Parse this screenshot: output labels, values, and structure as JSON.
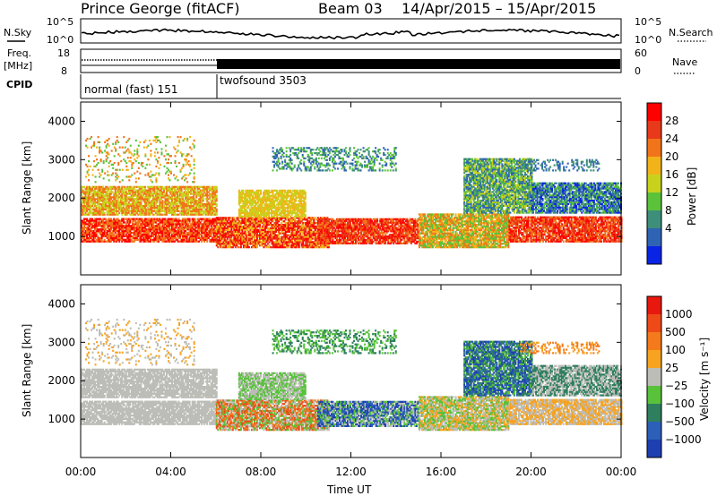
{
  "header": {
    "station": "Prince George (fitACF)",
    "beam": "Beam 03",
    "dates": "14/Apr/2015 – 15/Apr/2015"
  },
  "strip_labels": {
    "nsky": "N.Sky",
    "nsky_top": "10^5",
    "nsky_bottom": "10^0",
    "nsearch": "N.Search",
    "nsearch_top": "10^5",
    "nsearch_bottom": "10^0",
    "freq": "Freq.",
    "freq_unit": "[MHz]",
    "freq_top": "18",
    "freq_bottom": "8",
    "nave": "Nave",
    "nave_top": "60",
    "nave_bottom": "0",
    "cpid": "CPID"
  },
  "cpid_modes": [
    {
      "label": "normal (fast) 151",
      "start_hour": 0,
      "end_hour": 6
    },
    {
      "label": "twofsound 3503",
      "start_hour": 6,
      "end_hour": 24
    }
  ],
  "chart_data": [
    {
      "type": "heatmap",
      "panel": "power",
      "ylabel": "Slant Range [km]",
      "xlabel": "Time UT",
      "xlim_hours": [
        0,
        24
      ],
      "ylim": [
        0,
        4500
      ],
      "y_ticks": [
        "1000",
        "2000",
        "3000",
        "4000"
      ],
      "colorbar_label": "Power [dB]",
      "colorbar_ticks": [
        "4",
        "8",
        "12",
        "16",
        "20",
        "24",
        "28"
      ],
      "colorbar_colors": [
        "#0a24e6",
        "#2f64b4",
        "#3d8f7a",
        "#5bc33a",
        "#c8d21c",
        "#f2b31a",
        "#f2741a",
        "#e8391a",
        "#ff0000"
      ]
    },
    {
      "type": "heatmap",
      "panel": "velocity",
      "ylabel": "Slant Range [km]",
      "xlabel": "Time UT",
      "xlim_hours": [
        0,
        24
      ],
      "ylim": [
        0,
        4500
      ],
      "y_ticks": [
        "1000",
        "2000",
        "3000",
        "4000"
      ],
      "x_ticks": [
        "00:00",
        "04:00",
        "08:00",
        "12:00",
        "16:00",
        "20:00",
        "00:00"
      ],
      "colorbar_label": "Velocity [m s⁻¹]",
      "colorbar_ticks": [
        "1000",
        "500",
        "100",
        "25",
        "−25",
        "−100",
        "−500",
        "−1000"
      ],
      "colorbar_colors": [
        "#1d3fb0",
        "#2b5fb8",
        "#2e7f5e",
        "#57c23a",
        "#bdbdb8",
        "#f7a320",
        "#f47a1c",
        "#ee4a18",
        "#e8180e"
      ]
    }
  ]
}
